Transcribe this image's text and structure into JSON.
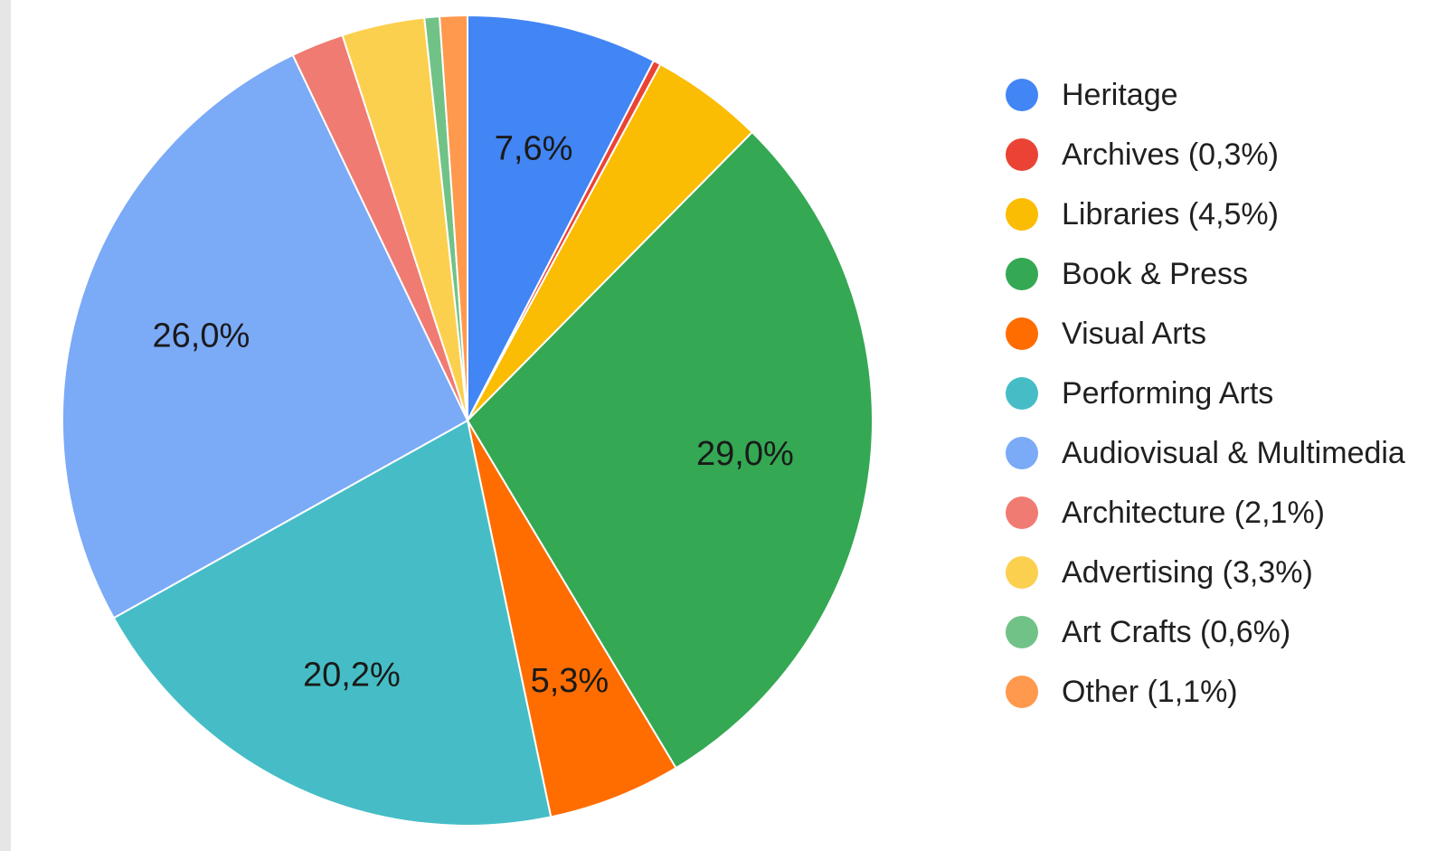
{
  "chart_data": {
    "type": "pie",
    "title": "",
    "legend_position": "right",
    "slices": [
      {
        "name": "Heritage",
        "legend_label": "Heritage",
        "value": 7.6,
        "slice_label": "7,6%",
        "color": "#4285f4"
      },
      {
        "name": "Archives",
        "legend_label": "Archives (0,3%)",
        "value": 0.3,
        "slice_label": "",
        "color": "#ea4335"
      },
      {
        "name": "Libraries",
        "legend_label": "Libraries (4,5%)",
        "value": 4.5,
        "slice_label": "",
        "color": "#fbbc04"
      },
      {
        "name": "Book & Press",
        "legend_label": "Book & Press",
        "value": 29.0,
        "slice_label": "29,0%",
        "color": "#34a853"
      },
      {
        "name": "Visual Arts",
        "legend_label": "Visual Arts",
        "value": 5.3,
        "slice_label": "5,3%",
        "color": "#ff6d01"
      },
      {
        "name": "Performing Arts",
        "legend_label": "Performing Arts",
        "value": 20.2,
        "slice_label": "20,2%",
        "color": "#46bdc6"
      },
      {
        "name": "Audiovisual & Multimedia",
        "legend_label": "Audiovisual & Multimedia",
        "value": 26.0,
        "slice_label": "26,0%",
        "color": "#7baaf7"
      },
      {
        "name": "Architecture",
        "legend_label": "Architecture (2,1%)",
        "value": 2.1,
        "slice_label": "",
        "color": "#f07b72"
      },
      {
        "name": "Advertising",
        "legend_label": "Advertising (3,3%)",
        "value": 3.3,
        "slice_label": "",
        "color": "#fcd04f"
      },
      {
        "name": "Art Crafts",
        "legend_label": "Art Crafts (0,6%)",
        "value": 0.6,
        "slice_label": "",
        "color": "#71c287"
      },
      {
        "name": "Other",
        "legend_label": "Other (1,1%)",
        "value": 1.1,
        "slice_label": "",
        "color": "#ff994d"
      }
    ]
  }
}
